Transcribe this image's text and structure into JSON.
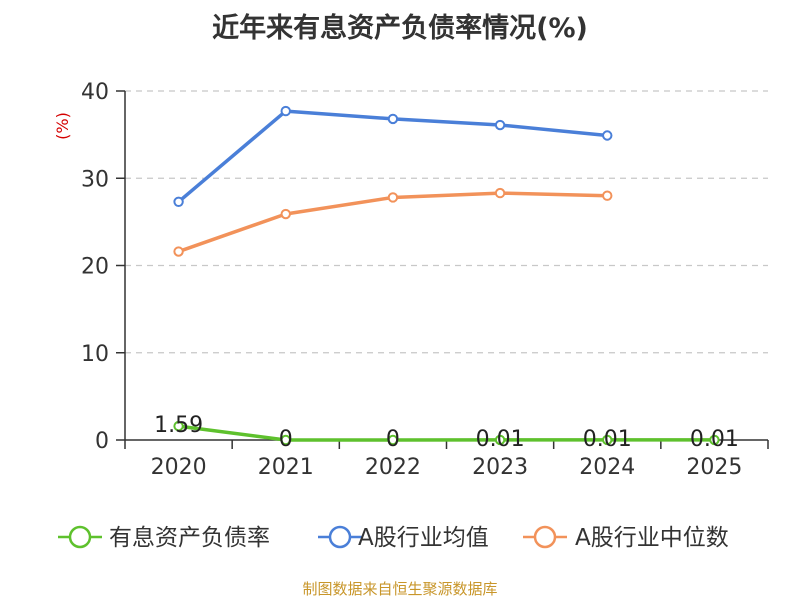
{
  "chart_data": {
    "type": "line",
    "title": "近年来有息资产负债率情况(%)",
    "ylabel": "(%)",
    "categories": [
      "2020",
      "2021",
      "2022",
      "2023",
      "2024",
      "2025"
    ],
    "ylim": [
      0,
      40
    ],
    "yticks": [
      0,
      10,
      20,
      30,
      40
    ],
    "grid": true,
    "legend_position": "bottom",
    "series": [
      {
        "name": "有息资产负债率",
        "color": "#5ec12d",
        "values": [
          1.59,
          0,
          0,
          0.01,
          0.01,
          0.01
        ],
        "labels": [
          "1.59",
          "0",
          "0",
          "0.01",
          "0.01",
          "0.01"
        ]
      },
      {
        "name": "A股行业均值",
        "color": "#4a7fd8",
        "values": [
          27.3,
          37.7,
          36.8,
          36.1,
          34.9,
          null
        ]
      },
      {
        "name": "A股行业中位数",
        "color": "#f2925a",
        "values": [
          21.6,
          25.9,
          27.8,
          28.3,
          28.0,
          null
        ]
      }
    ]
  },
  "source": "制图数据来自恒生聚源数据库"
}
